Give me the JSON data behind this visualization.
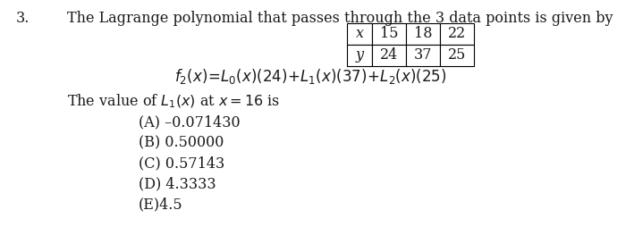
{
  "question_number": "3.",
  "title_text": "The Lagrange polynomial that passes through the 3 data points is given by",
  "table_x_label": "x",
  "table_y_label": "y",
  "table_x_vals": [
    "15",
    "18",
    "22"
  ],
  "table_y_vals": [
    "24",
    "37",
    "25"
  ],
  "options": [
    "(A) –0.071430",
    "(B) 0.50000",
    "(C) 0.57143",
    "(D) 4.3333",
    "(E)4.5"
  ],
  "bg_color": "#ffffff",
  "text_color": "#1a1a1a",
  "font_size": 11.5
}
